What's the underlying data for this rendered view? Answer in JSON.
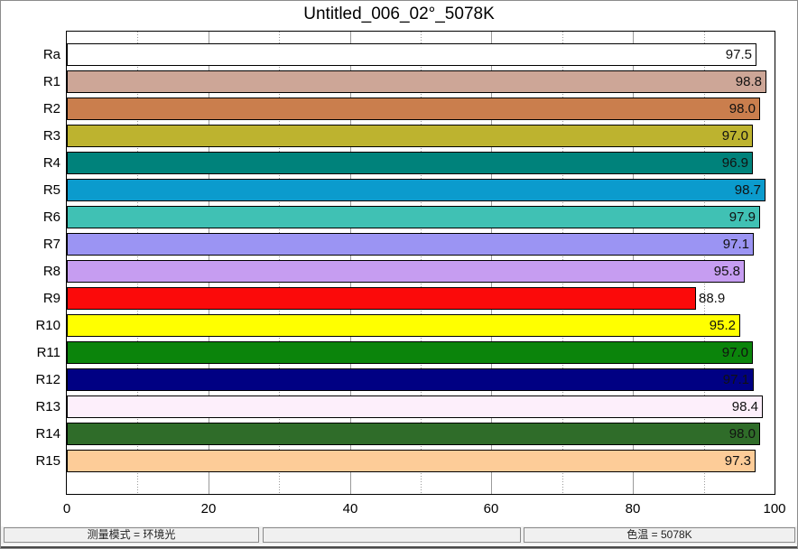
{
  "window": {
    "title": "Untitled_006_02°_5078K"
  },
  "chart_data": {
    "type": "bar",
    "orientation": "horizontal",
    "title": "Untitled_006_02°_5078K",
    "categories": [
      "Ra",
      "R1",
      "R2",
      "R3",
      "R4",
      "R5",
      "R6",
      "R7",
      "R8",
      "R9",
      "R10",
      "R11",
      "R12",
      "R13",
      "R14",
      "R15"
    ],
    "values": [
      97.5,
      98.8,
      98.0,
      97.0,
      96.9,
      98.7,
      97.9,
      97.1,
      95.8,
      88.9,
      95.2,
      97.0,
      97.1,
      98.4,
      98.0,
      97.3
    ],
    "value_labels": [
      "97.5",
      "98.8",
      "98.0",
      "97.0",
      "96.9",
      "98.7",
      "97.9",
      "97.1",
      "95.8",
      "88.9",
      "95.2",
      "97.0",
      "97.1",
      "98.4",
      "98.0",
      "97.3"
    ],
    "bar_colors": [
      "#ffffff",
      "#cda697",
      "#ca7e4d",
      "#bdb32f",
      "#00827b",
      "#0b9bcd",
      "#40c1b4",
      "#9b94f3",
      "#c69df1",
      "#fb0a0a",
      "#ffff00",
      "#0b840b",
      "#000083",
      "#fdeffb",
      "#2f6c29",
      "#fdcc98"
    ],
    "xlim": [
      0,
      100
    ],
    "x_major_ticks": [
      "0",
      "20",
      "40",
      "60",
      "80",
      "100"
    ],
    "x_major_tick_values": [
      0,
      20,
      40,
      60,
      80,
      100
    ],
    "x_major_gridlines": [
      20,
      40,
      60,
      80
    ],
    "x_minor_gridlines": [
      10,
      30,
      50,
      70,
      90
    ],
    "grid": "on",
    "legend": "none",
    "xlabel": "",
    "ylabel": ""
  },
  "footer": {
    "measurement_mode": "测量模式 = 环境光",
    "middle": "",
    "color_temperature": "色温 = 5078K"
  },
  "colors": {
    "grid": "#9a9a9a",
    "bar_border": "#000000",
    "plot_border": "#000000",
    "value_text": "#111111",
    "footer_bg": "#f0f0f0",
    "window_border": "#8c8c8c"
  }
}
